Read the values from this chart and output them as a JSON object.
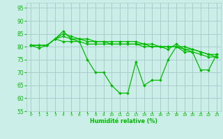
{
  "background_color": "#cceee8",
  "grid_color": "#aacccc",
  "line_color": "#00bb00",
  "marker_color": "#00bb00",
  "xlabel": "Humidité relative (%)",
  "xlabel_color": "#00bb00",
  "ylim": [
    55,
    97
  ],
  "xlim": [
    -0.5,
    23.5
  ],
  "yticks": [
    55,
    60,
    65,
    70,
    75,
    80,
    85,
    90,
    95
  ],
  "xtick_labels": [
    "0",
    "1",
    "2",
    "3",
    "4",
    "5",
    "6",
    "7",
    "8",
    "9",
    "10",
    "11",
    "12",
    "13",
    "14",
    "15",
    "16",
    "17",
    "18",
    "19",
    "20",
    "21",
    "22",
    "23"
  ],
  "series": [
    [
      80.5,
      79.5,
      80.5,
      83,
      86,
      83,
      82,
      75,
      70,
      70,
      65,
      62,
      62,
      74,
      65,
      67,
      67,
      75,
      80,
      78,
      78,
      71,
      71,
      77
    ],
    [
      80.5,
      80.5,
      80.5,
      83,
      82,
      82,
      82,
      81,
      81,
      81,
      81,
      81,
      81,
      81,
      80,
      80,
      80,
      79,
      81,
      79,
      78,
      77,
      76,
      76
    ],
    [
      80.5,
      80.5,
      80.5,
      83,
      85,
      84,
      83,
      83,
      82,
      82,
      82,
      82,
      82,
      82,
      81,
      81,
      80,
      80,
      80,
      80,
      79,
      78,
      77,
      77
    ],
    [
      80.5,
      80.5,
      80.5,
      83,
      84,
      83,
      83,
      82,
      82,
      82,
      81,
      81,
      81,
      81,
      81,
      80,
      80,
      80,
      80,
      79,
      79,
      78,
      77,
      76
    ]
  ]
}
